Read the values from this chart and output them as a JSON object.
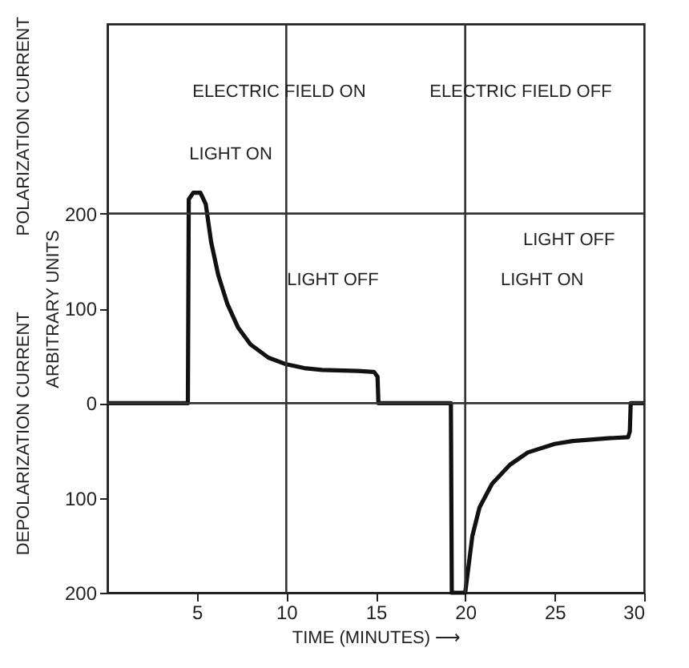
{
  "chart_data": {
    "type": "line",
    "xlabel": "TIME (MINUTES) ⟶",
    "ylabel": "ARBITRARY UNITS",
    "x": [
      0,
      4.5,
      4.55,
      4.8,
      5.2,
      5.5,
      5.8,
      6.2,
      6.7,
      7.3,
      8,
      9,
      10,
      11,
      12,
      14,
      14.9,
      15.1,
      15.15,
      19.2,
      19.25,
      20.0,
      20.1,
      20.4,
      20.8,
      21.5,
      22.5,
      23.5,
      25,
      26,
      28,
      29.1,
      29.2,
      29.25,
      30
    ],
    "series": [
      {
        "color": "#111111",
        "values": [
          0,
          0,
          215,
          222,
          222,
          210,
          170,
          135,
          105,
          80,
          62,
          48,
          41,
          37,
          35,
          34,
          33,
          28,
          0,
          0,
          -200,
          -200,
          -185,
          -140,
          -110,
          -85,
          -65,
          -52,
          -43,
          -40,
          -37,
          -36,
          -30,
          0,
          0
        ]
      }
    ],
    "xlim": [
      0,
      30
    ],
    "xticks": [
      5,
      10,
      15,
      20,
      25,
      30
    ],
    "ylim": [
      -200,
      400
    ],
    "yticks": [
      {
        "value": -200,
        "label": "200"
      },
      {
        "value": -100,
        "label": "100"
      },
      0,
      100,
      200
    ],
    "marker": "none",
    "line_style": "solid",
    "grid": false,
    "ref_lines": [
      {
        "axis": "y",
        "value": 200
      },
      {
        "axis": "y",
        "value": 0
      },
      {
        "axis": "x",
        "value": 10
      },
      {
        "axis": "x",
        "value": 20
      }
    ],
    "annotations": [
      "POLARIZATION CURRENT",
      "DEPOLARIZATION CURRENT",
      "ELECTRIC FIELD ON",
      "ELECTRIC FIELD OFF",
      "LIGHT ON",
      "LIGHT OFF",
      "LIGHT ON",
      "LIGHT OFF"
    ]
  }
}
